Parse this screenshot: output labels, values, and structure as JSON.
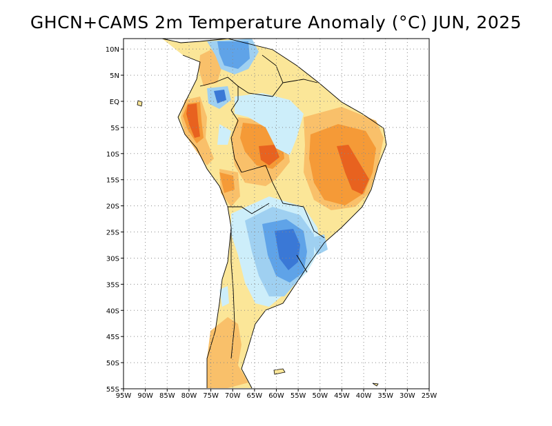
{
  "title": "GHCN+CAMS 2m Temperature Anomaly (°C) JUN, 2025",
  "map": {
    "region": "South America",
    "variable": "2m Temperature Anomaly",
    "units": "°C",
    "period": "JUN, 2025",
    "lon_range": [
      -95,
      -25
    ],
    "lat_range": [
      -55,
      12
    ],
    "lat_labels": [
      "10N",
      "5N",
      "EQ",
      "5S",
      "10S",
      "15S",
      "20S",
      "25S",
      "30S",
      "35S",
      "40S",
      "45S",
      "50S",
      "55S"
    ],
    "lat_values": [
      10,
      5,
      0,
      -5,
      -10,
      -15,
      -20,
      -25,
      -30,
      -35,
      -40,
      -45,
      -50,
      -55
    ],
    "lon_labels": [
      "95W",
      "90W",
      "85W",
      "80W",
      "75W",
      "70W",
      "65W",
      "60W",
      "55W",
      "50W",
      "45W",
      "40W",
      "35W",
      "30W",
      "25W"
    ],
    "lon_values": [
      -95,
      -90,
      -85,
      -80,
      -75,
      -70,
      -65,
      -60,
      -55,
      -50,
      -45,
      -40,
      -35,
      -30,
      -25
    ],
    "grid": "dotted",
    "colors": {
      "warm_light": "#fbe698",
      "warm_mid": "#f9c06a",
      "warm": "#f59a37",
      "warm_strong": "#e8621f",
      "cool_light": "#cdeefa",
      "cool_mid": "#9fd0f1",
      "cool": "#5fa3e8",
      "cool_strong": "#3a78d6"
    }
  }
}
